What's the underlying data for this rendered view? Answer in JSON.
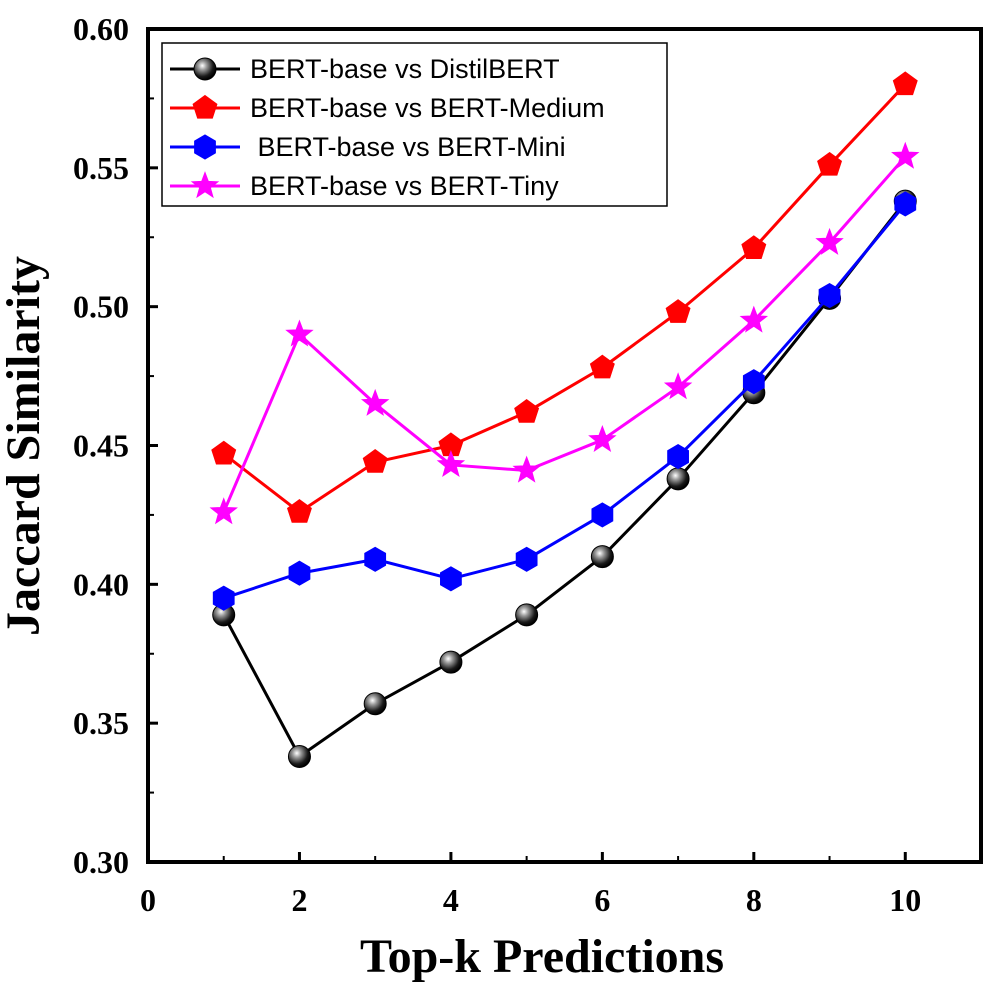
{
  "chart_data": {
    "type": "line",
    "title": "",
    "xlabel": "Top-k Predictions",
    "ylabel": "Jaccard Similarity",
    "xlim": [
      0,
      11
    ],
    "ylim": [
      0.3,
      0.6
    ],
    "xticks": [
      0,
      2,
      4,
      6,
      8,
      10
    ],
    "xtick_labels": [
      "0",
      "2",
      "4",
      "6",
      "8",
      "10"
    ],
    "yticks": [
      0.3,
      0.35,
      0.4,
      0.45,
      0.5,
      0.55,
      0.6
    ],
    "ytick_labels": [
      "0.30",
      "0.35",
      "0.40",
      "0.45",
      "0.50",
      "0.55",
      "0.60"
    ],
    "grid": false,
    "legend_position": "top-left",
    "x": [
      1,
      2,
      3,
      4,
      5,
      6,
      7,
      8,
      9,
      10
    ],
    "series": [
      {
        "name": "BERT-base vs DistilBERT",
        "color": "#000000",
        "marker": "sphere",
        "values": [
          0.389,
          0.338,
          0.357,
          0.372,
          0.389,
          0.41,
          0.438,
          0.469,
          0.503,
          0.538
        ]
      },
      {
        "name": "BERT-base vs BERT-Medium",
        "color": "#ff0000",
        "marker": "pentagon",
        "values": [
          0.447,
          0.426,
          0.444,
          0.45,
          0.462,
          0.478,
          0.498,
          0.521,
          0.551,
          0.58
        ]
      },
      {
        "name": " BERT-base vs BERT-Mini",
        "color": "#0000ff",
        "marker": "hexagon",
        "values": [
          0.395,
          0.404,
          0.409,
          0.402,
          0.409,
          0.425,
          0.446,
          0.473,
          0.504,
          0.537
        ]
      },
      {
        "name": "BERT-base vs BERT-Tiny",
        "color": "#ff00ff",
        "marker": "star",
        "values": [
          0.426,
          0.49,
          0.465,
          0.443,
          0.441,
          0.452,
          0.471,
          0.495,
          0.523,
          0.554
        ]
      }
    ]
  }
}
